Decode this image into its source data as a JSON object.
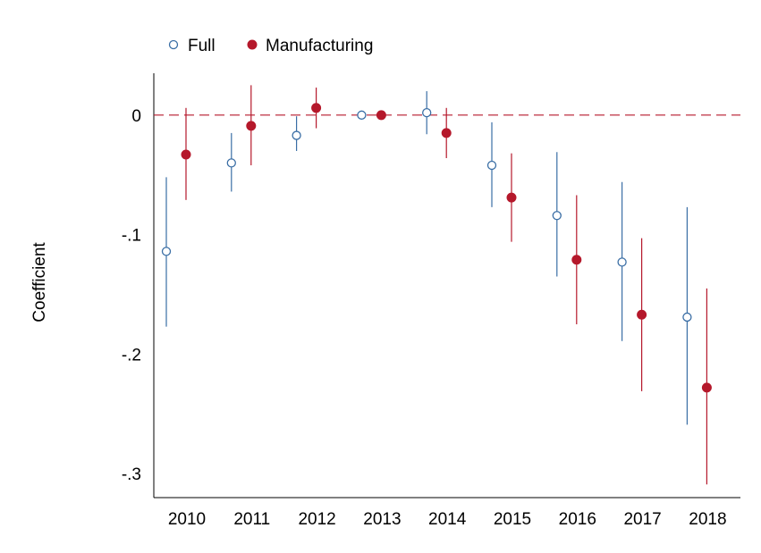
{
  "chart_data": {
    "type": "scatter",
    "title": "",
    "xlabel": "",
    "ylabel": "Coefficient",
    "x": [
      2010,
      2011,
      2012,
      2013,
      2014,
      2015,
      2016,
      2017,
      2018
    ],
    "ylim": [
      -0.32,
      0.035
    ],
    "yticks": [
      0,
      -0.1,
      -0.2,
      -0.3
    ],
    "ytick_labels": [
      "0",
      "-.1",
      "-.2",
      "-.3"
    ],
    "xtick_labels": [
      "2010",
      "2011",
      "2012",
      "2013",
      "2014",
      "2015",
      "2016",
      "2017",
      "2018"
    ],
    "reference_line": {
      "y": 0,
      "style": "dashed",
      "color": "#b5182b"
    },
    "legend_position": "top-left",
    "series": [
      {
        "name": "Full",
        "marker": "hollow-circle",
        "color": "#3a6ea5",
        "values": [
          -0.114,
          -0.04,
          -0.017,
          0.0,
          0.002,
          -0.042,
          -0.084,
          -0.123,
          -0.169
        ],
        "ci_low": [
          -0.177,
          -0.064,
          -0.03,
          0.0,
          -0.016,
          -0.077,
          -0.135,
          -0.189,
          -0.259
        ],
        "ci_high": [
          -0.052,
          -0.015,
          -0.001,
          0.0,
          0.02,
          -0.006,
          -0.031,
          -0.056,
          -0.077
        ]
      },
      {
        "name": "Manufacturing",
        "marker": "filled-circle",
        "color": "#b5182b",
        "values": [
          -0.033,
          -0.009,
          0.006,
          0.0,
          -0.015,
          -0.069,
          -0.121,
          -0.167,
          -0.228
        ],
        "ci_low": [
          -0.071,
          -0.042,
          -0.011,
          0.0,
          -0.036,
          -0.106,
          -0.175,
          -0.231,
          -0.309
        ],
        "ci_high": [
          0.006,
          0.025,
          0.023,
          0.0,
          0.006,
          -0.032,
          -0.067,
          -0.103,
          -0.145
        ]
      }
    ]
  }
}
